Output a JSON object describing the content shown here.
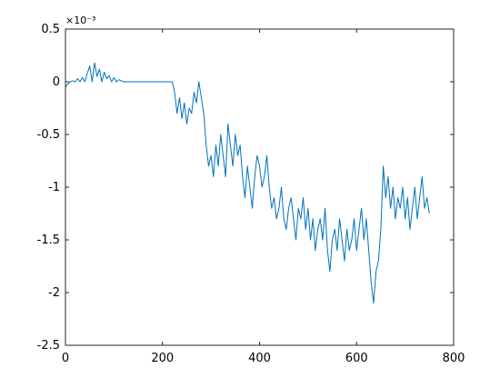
{
  "chart_data": {
    "type": "line",
    "title": "",
    "xlabel": "",
    "ylabel": "",
    "xlim": [
      0,
      800
    ],
    "ylim": [
      -0.0025,
      0.0005
    ],
    "x_ticks": [
      0,
      200,
      400,
      600,
      800
    ],
    "x_tick_labels": [
      "0",
      "200",
      "400",
      "600",
      "800"
    ],
    "y_ticks": [
      -0.0025,
      -0.002,
      -0.0015,
      -0.001,
      -0.0005,
      0,
      0.0005
    ],
    "y_tick_labels": [
      "-2.5",
      "-2",
      "-1.5",
      "-1",
      "-0.5",
      "0",
      "0.5"
    ],
    "y_exponent_label": "×10⁻³",
    "grid": false,
    "line_color": "#0072BD",
    "series": [
      {
        "x": [
          0,
          5,
          10,
          15,
          20,
          25,
          30,
          35,
          40,
          45,
          50,
          55,
          60,
          65,
          70,
          75,
          80,
          85,
          90,
          95,
          100,
          105,
          110,
          120,
          140,
          160,
          180,
          200,
          215,
          220,
          225,
          230,
          235,
          240,
          245,
          250,
          255,
          260,
          265,
          270,
          275,
          280,
          285,
          290,
          295,
          300,
          305,
          310,
          315,
          320,
          325,
          330,
          335,
          340,
          345,
          350,
          355,
          360,
          365,
          370,
          375,
          380,
          385,
          390,
          395,
          400,
          405,
          410,
          415,
          420,
          425,
          430,
          435,
          440,
          445,
          450,
          455,
          460,
          465,
          470,
          475,
          480,
          485,
          490,
          495,
          500,
          505,
          510,
          515,
          520,
          525,
          530,
          535,
          540,
          545,
          550,
          555,
          560,
          565,
          570,
          575,
          580,
          585,
          590,
          595,
          600,
          605,
          610,
          615,
          620,
          625,
          630,
          635,
          640,
          645,
          650,
          655,
          660,
          665,
          670,
          675,
          680,
          685,
          690,
          695,
          700,
          705,
          710,
          715,
          720,
          725,
          730,
          735,
          740,
          745,
          750
        ],
        "values": [
          -5e-05,
          -2e-05,
          0,
          1e-05,
          0,
          3e-05,
          0,
          4e-05,
          0,
          8e-05,
          0.00015,
          0,
          0.00018,
          5e-05,
          0.00012,
          0,
          9e-05,
          3e-05,
          6e-05,
          0,
          4e-05,
          0,
          2e-05,
          0,
          0,
          0,
          0,
          0,
          0,
          0,
          -0.0001,
          -0.0003,
          -0.00015,
          -0.00035,
          -0.0002,
          -0.0004,
          -0.00025,
          -0.0003,
          -0.0001,
          -0.0002,
          0,
          -0.00015,
          -0.0003,
          -0.0006,
          -0.0008,
          -0.0007,
          -0.0009,
          -0.0006,
          -0.0008,
          -0.0005,
          -0.0007,
          -0.0009,
          -0.0004,
          -0.0006,
          -0.0008,
          -0.0005,
          -0.0007,
          -0.0006,
          -0.0009,
          -0.0011,
          -0.0008,
          -0.001,
          -0.0012,
          -0.0009,
          -0.0007,
          -0.0008,
          -0.001,
          -0.0009,
          -0.0007,
          -0.001,
          -0.0012,
          -0.0011,
          -0.0013,
          -0.0012,
          -0.001,
          -0.0013,
          -0.0014,
          -0.0012,
          -0.0011,
          -0.0013,
          -0.0015,
          -0.0012,
          -0.0013,
          -0.0011,
          -0.0014,
          -0.0012,
          -0.0015,
          -0.0013,
          -0.0016,
          -0.0014,
          -0.0013,
          -0.0015,
          -0.0012,
          -0.0016,
          -0.0018,
          -0.0015,
          -0.0014,
          -0.0016,
          -0.0013,
          -0.0015,
          -0.0017,
          -0.0014,
          -0.0016,
          -0.0015,
          -0.0013,
          -0.0016,
          -0.0014,
          -0.0012,
          -0.0015,
          -0.0013,
          -0.0016,
          -0.0019,
          -0.0021,
          -0.0018,
          -0.0017,
          -0.0014,
          -0.0008,
          -0.0011,
          -0.0009,
          -0.0012,
          -0.001,
          -0.0013,
          -0.0011,
          -0.0012,
          -0.001,
          -0.0013,
          -0.0011,
          -0.0014,
          -0.0012,
          -0.001,
          -0.0013,
          -0.0011,
          -0.0009,
          -0.0012,
          -0.0011,
          -0.00125
        ]
      }
    ]
  }
}
